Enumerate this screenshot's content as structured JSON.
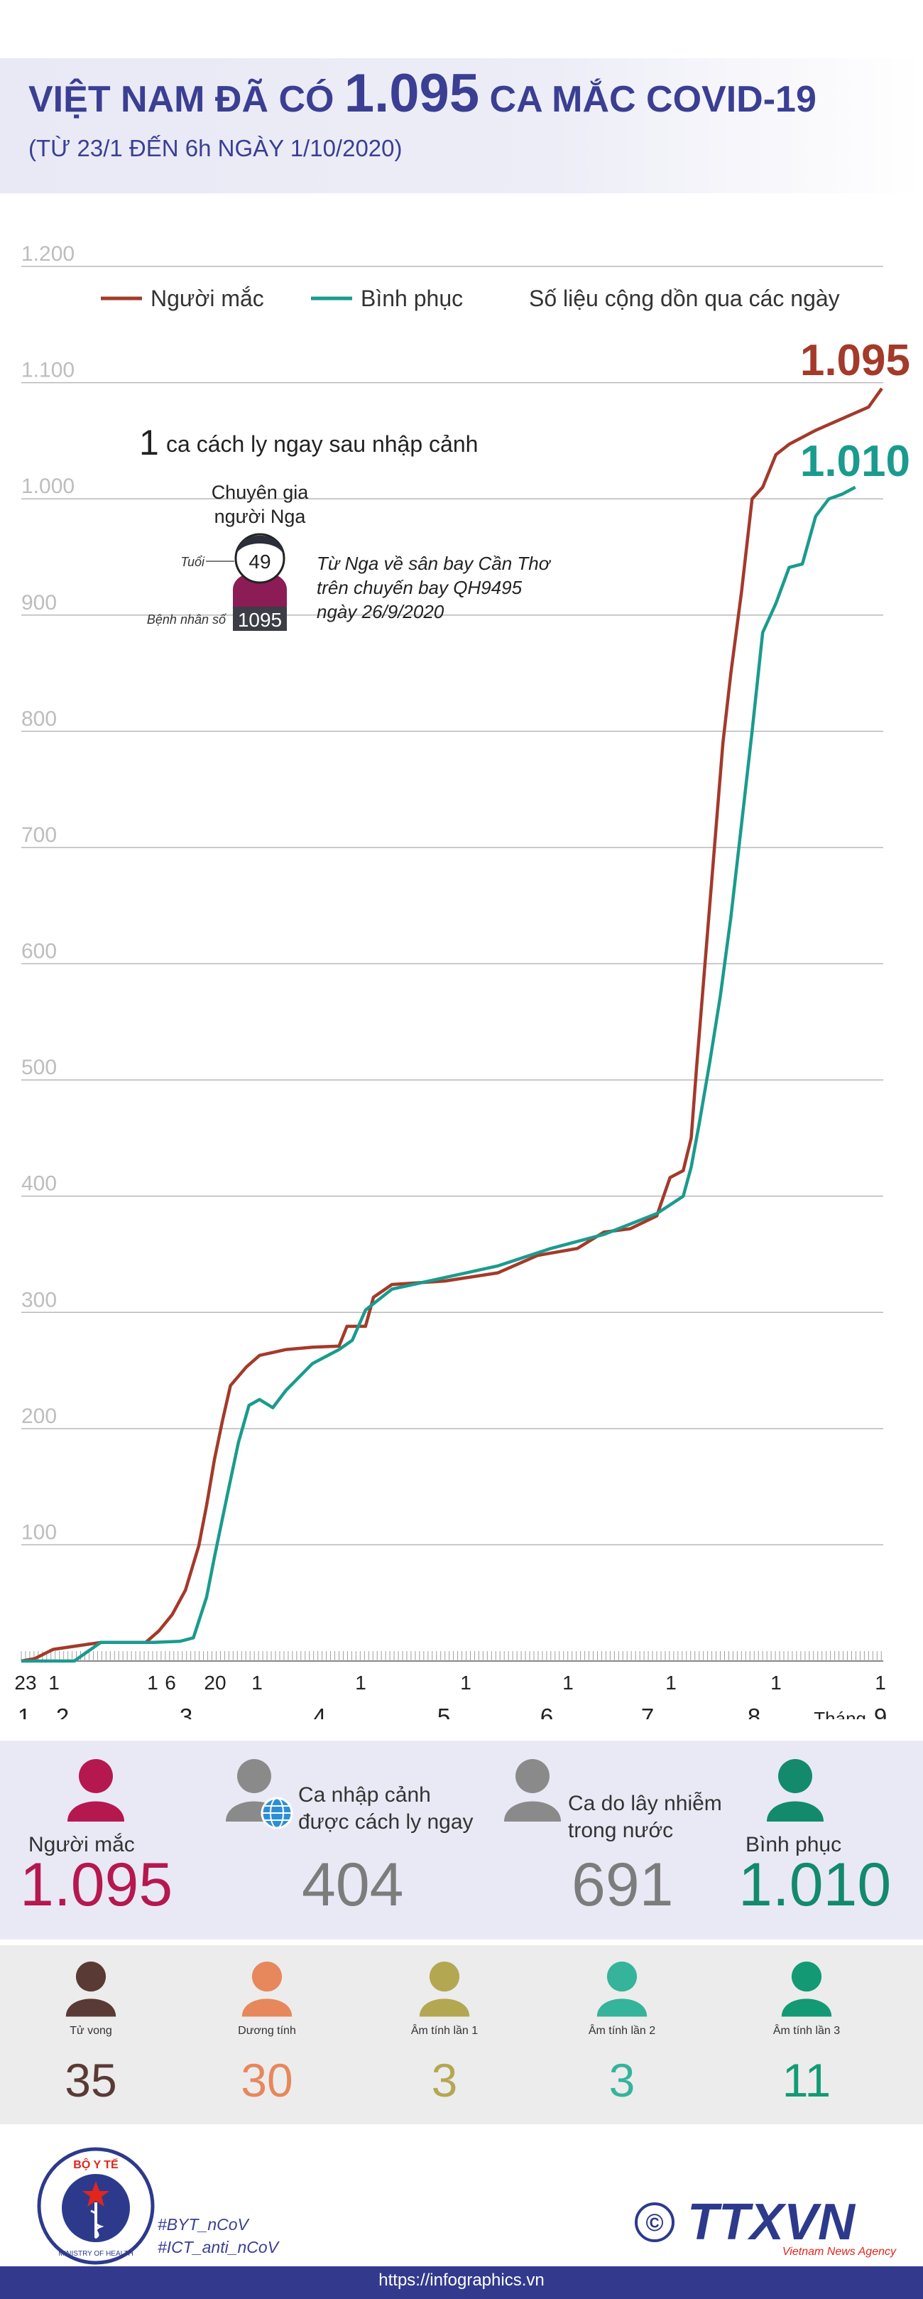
{
  "header": {
    "title_pre": "VIỆT NAM ĐÃ CÓ",
    "title_num": "1.095",
    "title_post": "CA MẮC COVID-19",
    "subtitle": "(TỪ 23/1 ĐẾN 6h NGÀY 1/10/2020)"
  },
  "chart_data": {
    "type": "line",
    "ylim": [
      0,
      1200
    ],
    "yticks": [
      "1.200",
      "1.100",
      "1.000",
      "900",
      "800",
      "700",
      "600",
      "500",
      "400",
      "300",
      "200",
      "100"
    ],
    "legend": {
      "infected": "Người mắc",
      "recovered": "Bình phục",
      "note": "Số liệu cộng dồn qua các ngày"
    },
    "end_labels": {
      "infected": "1.095",
      "recovered": "1.010"
    },
    "x_day_ticks": [
      "23",
      "1",
      "1",
      "6",
      "20",
      "1",
      "1",
      "1",
      "1",
      "1",
      "1",
      "1"
    ],
    "x_month_ticks": [
      "1",
      "2",
      "3",
      "4",
      "5",
      "6",
      "7",
      "8",
      "9"
    ],
    "x_month_word": "Tháng",
    "series": [
      {
        "name": "Người mắc",
        "color": "#a33a2a",
        "points": [
          [
            0,
            0
          ],
          [
            5,
            2
          ],
          [
            12,
            10
          ],
          [
            30,
            16
          ],
          [
            47,
            16
          ],
          [
            52,
            26
          ],
          [
            57,
            40
          ],
          [
            62,
            61
          ],
          [
            67,
            99
          ],
          [
            70,
            134
          ],
          [
            73,
            174
          ],
          [
            76,
            207
          ],
          [
            79,
            237
          ],
          [
            85,
            253
          ],
          [
            90,
            263
          ],
          [
            100,
            268
          ],
          [
            110,
            270
          ],
          [
            120,
            271
          ],
          [
            123,
            288
          ],
          [
            130,
            288
          ],
          [
            133,
            313
          ],
          [
            140,
            324
          ],
          [
            160,
            327
          ],
          [
            180,
            334
          ],
          [
            195,
            349
          ],
          [
            210,
            355
          ],
          [
            220,
            369
          ],
          [
            230,
            372
          ],
          [
            240,
            383
          ],
          [
            245,
            416
          ],
          [
            250,
            422
          ],
          [
            253,
            450
          ],
          [
            255,
            510
          ],
          [
            260,
            650
          ],
          [
            265,
            790
          ],
          [
            268,
            850
          ],
          [
            272,
            920
          ],
          [
            276,
            1000
          ],
          [
            280,
            1010
          ],
          [
            285,
            1038
          ],
          [
            290,
            1047
          ],
          [
            300,
            1059
          ],
          [
            310,
            1069
          ],
          [
            320,
            1079
          ],
          [
            325,
            1095
          ]
        ]
      },
      {
        "name": "Bình phục",
        "color": "#1a9b8e",
        "points": [
          [
            0,
            0
          ],
          [
            20,
            0
          ],
          [
            25,
            8
          ],
          [
            30,
            16
          ],
          [
            50,
            16
          ],
          [
            60,
            17
          ],
          [
            65,
            20
          ],
          [
            70,
            55
          ],
          [
            73,
            90
          ],
          [
            78,
            145
          ],
          [
            82,
            188
          ],
          [
            86,
            220
          ],
          [
            90,
            225
          ],
          [
            95,
            218
          ],
          [
            100,
            233
          ],
          [
            110,
            256
          ],
          [
            120,
            268
          ],
          [
            125,
            276
          ],
          [
            130,
            302
          ],
          [
            140,
            320
          ],
          [
            160,
            330
          ],
          [
            180,
            340
          ],
          [
            200,
            355
          ],
          [
            220,
            367
          ],
          [
            240,
            385
          ],
          [
            250,
            400
          ],
          [
            253,
            425
          ],
          [
            256,
            462
          ],
          [
            260,
            515
          ],
          [
            264,
            572
          ],
          [
            268,
            640
          ],
          [
            272,
            720
          ],
          [
            276,
            800
          ],
          [
            280,
            885
          ],
          [
            285,
            910
          ],
          [
            290,
            941
          ],
          [
            295,
            944
          ],
          [
            300,
            985
          ],
          [
            305,
            1000
          ],
          [
            310,
            1004
          ],
          [
            315,
            1010
          ]
        ]
      }
    ]
  },
  "annotation": {
    "count": "1",
    "text": "ca cách ly ngay sau nhập cảnh",
    "who": [
      "Chuyên gia",
      "người Nga"
    ],
    "age_label": "Tuổi",
    "age": "49",
    "patient_label": "Bệnh nhân số",
    "patient": "1095",
    "note": [
      "Từ Nga về sân bay Cần Thơ",
      "trên chuyến bay QH9495",
      "ngày 26/9/2020"
    ]
  },
  "stats_main": [
    {
      "label": "Người mắc",
      "value": "1.095",
      "color": "#b5184f"
    },
    {
      "label": "Ca nhập cảnh được cách ly ngay",
      "value": "404",
      "color": "#7c7c7c"
    },
    {
      "label": "Ca do lây nhiễm trong nước",
      "value": "691",
      "color": "#7c7c7c"
    },
    {
      "label": "Bình phục",
      "value": "1.010",
      "color": "#138a6b"
    }
  ],
  "stats_sub": [
    {
      "label": "Tử vong",
      "value": "35",
      "color": "#5a3a35"
    },
    {
      "label": "Dương tính",
      "value": "30",
      "color": "#e7875c"
    },
    {
      "label": "Âm tính lần 1",
      "value": "3",
      "color": "#b4a751"
    },
    {
      "label": "Âm tính lần 2",
      "value": "3",
      "color": "#35b39b"
    },
    {
      "label": "Âm tính lần 3",
      "value": "11",
      "color": "#139a74"
    }
  ],
  "footer": {
    "ministry_top": "BỘ Y TẾ",
    "ministry_bottom": "MINISTRY OF HEALTH",
    "hashtags": [
      "#BYT_nCoV",
      "#ICT_anti_nCoV"
    ],
    "copyright": "©",
    "agency": "TTXVN",
    "agency_sub": "Vietnam News Agency",
    "url": "https://infographics.vn"
  }
}
